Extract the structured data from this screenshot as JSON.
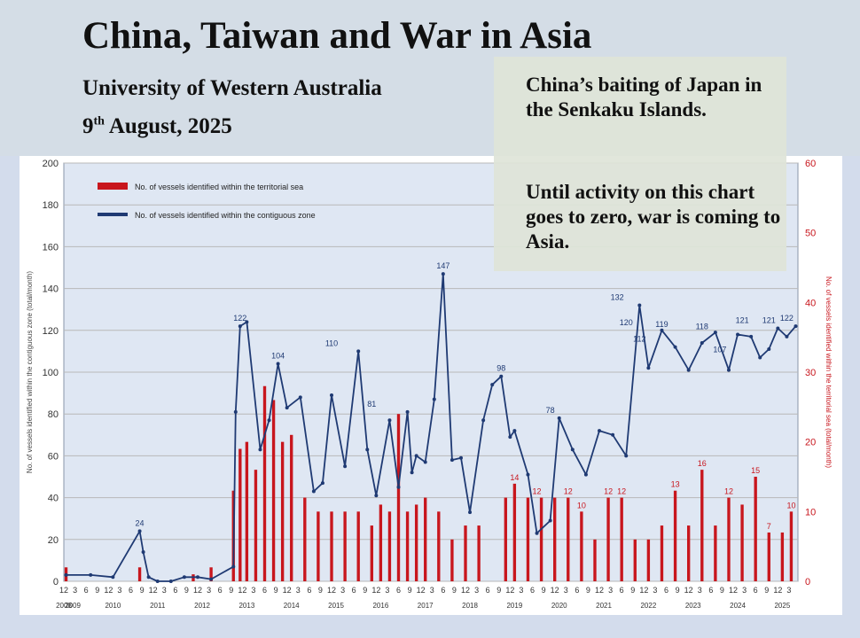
{
  "slide": {
    "title": "China, Taiwan and War in Asia",
    "subtitle": "University of Western Australia",
    "date_day": "9",
    "date_suffix": "th",
    "date_rest": "August, 2025"
  },
  "callout": {
    "line1": "China’s baiting of Japan in the Senkaku Islands.",
    "line2": "Until activity on this chart goes to zero, war is coming to Asia."
  },
  "colors": {
    "contiguous_line": "#1f3a73",
    "territorial_bars": "#c8161d",
    "gridline": "#b8b8b8",
    "plot_background": "#dfe7f3"
  },
  "chart_data": {
    "type": "line+bar",
    "title": "",
    "ylabel_left": "No. of vessels identified within the contiguous zone (total/month)",
    "ylabel_right": "No. of vessels identified within the territorial sea (total/month)",
    "ylim_left": [
      0,
      200
    ],
    "yticks_left": [
      0,
      20,
      40,
      60,
      80,
      100,
      120,
      140,
      160,
      180,
      200
    ],
    "ylim_right": [
      0,
      60
    ],
    "yticks_right": [
      0,
      10,
      20,
      30,
      40,
      50,
      60
    ],
    "xlim": [
      2008.9,
      2025.35
    ],
    "year_labels": [
      "2008",
      "2009",
      "2010",
      "2011",
      "2012",
      "2013",
      "2014",
      "2015",
      "2016",
      "2017",
      "2018",
      "2019",
      "2020",
      "2021",
      "2022",
      "2023",
      "2024",
      "2025"
    ],
    "year_positions": [
      2008.9,
      2009.1,
      2010,
      2011,
      2012,
      2013,
      2014,
      2015,
      2016,
      2017,
      2018,
      2019,
      2020,
      2021,
      2022,
      2023,
      2024,
      2025
    ],
    "month_tick_labels": [
      "12",
      "3",
      "6",
      "9"
    ],
    "legend": [
      {
        "label": "No. of vessels identified within the territorial sea",
        "series": "territorial"
      },
      {
        "label": "No. of vessels identified within the contiguous zone",
        "series": "contiguous"
      }
    ],
    "series": [
      {
        "name": "No. of vessels identified within the contiguous zone",
        "axis": "left",
        "style": "line",
        "x": [
          2008.95,
          2009.5,
          2010.0,
          2010.6,
          2010.68,
          2010.8,
          2011.0,
          2011.3,
          2011.6,
          2011.9,
          2012.2,
          2012.7,
          2012.75,
          2012.85,
          2013.0,
          2013.3,
          2013.5,
          2013.7,
          2013.9,
          2014.2,
          2014.5,
          2014.7,
          2014.9,
          2015.2,
          2015.5,
          2015.7,
          2015.9,
          2016.2,
          2016.4,
          2016.6,
          2016.7,
          2016.8,
          2017.0,
          2017.2,
          2017.4,
          2017.6,
          2017.8,
          2018.0,
          2018.3,
          2018.5,
          2018.7,
          2018.9,
          2019.0,
          2019.3,
          2019.5,
          2019.8,
          2020.0,
          2020.3,
          2020.6,
          2020.9,
          2021.2,
          2021.5,
          2021.8,
          2022.0,
          2022.3,
          2022.6,
          2022.9,
          2023.2,
          2023.5,
          2023.8,
          2024.0,
          2024.3,
          2024.5,
          2024.7,
          2024.9,
          2025.1,
          2025.3
        ],
        "y": [
          3,
          3,
          2,
          24,
          14,
          2,
          0,
          0,
          2,
          2,
          1,
          7,
          81,
          122,
          124,
          63,
          77,
          104,
          83,
          88,
          43,
          47,
          89,
          55,
          110,
          63,
          41,
          77,
          45,
          81,
          52,
          60,
          57,
          87,
          147,
          58,
          59,
          33,
          77,
          94,
          98,
          69,
          72,
          51,
          23,
          29,
          78,
          63,
          51,
          72,
          70,
          60,
          132,
          102,
          120,
          112,
          101,
          114,
          119,
          101,
          118,
          117,
          107,
          111,
          121,
          117,
          122
        ]
      },
      {
        "name": "No. of vessels identified within the territorial sea",
        "axis": "right",
        "style": "bar",
        "x": [
          2008.95,
          2009.5,
          2010.0,
          2010.6,
          2011.0,
          2011.4,
          2011.8,
          2012.2,
          2012.6,
          2012.7,
          2012.85,
          2013.0,
          2013.2,
          2013.4,
          2013.6,
          2013.8,
          2014.0,
          2014.3,
          2014.6,
          2014.9,
          2015.2,
          2015.5,
          2015.8,
          2016.0,
          2016.2,
          2016.4,
          2016.6,
          2016.8,
          2017.0,
          2017.3,
          2017.6,
          2017.9,
          2018.2,
          2018.5,
          2018.8,
          2019.0,
          2019.3,
          2019.6,
          2019.9,
          2020.2,
          2020.5,
          2020.8,
          2021.1,
          2021.4,
          2021.7,
          2022.0,
          2022.3,
          2022.6,
          2022.9,
          2023.2,
          2023.5,
          2023.8,
          2024.1,
          2024.4,
          2024.7,
          2025.0,
          2025.2
        ],
        "y": [
          2,
          0,
          0,
          2,
          0,
          0,
          1,
          2,
          0,
          13,
          19,
          20,
          16,
          28,
          26,
          20,
          21,
          12,
          10,
          10,
          10,
          10,
          8,
          11,
          10,
          24,
          10,
          11,
          12,
          10,
          6,
          8,
          8,
          0,
          12,
          14,
          12,
          12,
          12,
          12,
          10,
          6,
          12,
          12,
          6,
          6,
          8,
          13,
          8,
          16,
          8,
          12,
          11,
          15,
          7,
          7,
          10
        ]
      }
    ],
    "annotations": {
      "left_labels": [
        {
          "x": 2010.6,
          "y": 24,
          "text": "24"
        },
        {
          "x": 2012.85,
          "y": 122,
          "text": "122"
        },
        {
          "x": 2013.7,
          "y": 104,
          "text": "104"
        },
        {
          "x": 2014.9,
          "y": 110,
          "text": "110"
        },
        {
          "x": 2015.8,
          "y": 81,
          "text": "81"
        },
        {
          "x": 2017.4,
          "y": 147,
          "text": "147"
        },
        {
          "x": 2018.7,
          "y": 98,
          "text": "98"
        },
        {
          "x": 2019.8,
          "y": 78,
          "text": "78"
        },
        {
          "x": 2021.3,
          "y": 132,
          "text": "132"
        },
        {
          "x": 2021.5,
          "y": 120,
          "text": "120"
        },
        {
          "x": 2021.8,
          "y": 112,
          "text": "112"
        },
        {
          "x": 2022.3,
          "y": 119,
          "text": "119"
        },
        {
          "x": 2023.2,
          "y": 118,
          "text": "118"
        },
        {
          "x": 2023.6,
          "y": 107,
          "text": "107"
        },
        {
          "x": 2024.1,
          "y": 121,
          "text": "121"
        },
        {
          "x": 2024.7,
          "y": 121,
          "text": "121"
        },
        {
          "x": 2025.1,
          "y": 122,
          "text": "122"
        }
      ],
      "right_labels": [
        {
          "x": 2019.0,
          "y": 14,
          "text": "14"
        },
        {
          "x": 2019.5,
          "y": 12,
          "text": "12"
        },
        {
          "x": 2020.2,
          "y": 12,
          "text": "12"
        },
        {
          "x": 2020.5,
          "y": 10,
          "text": "10"
        },
        {
          "x": 2021.1,
          "y": 12,
          "text": "12"
        },
        {
          "x": 2021.4,
          "y": 12,
          "text": "12"
        },
        {
          "x": 2022.6,
          "y": 13,
          "text": "13"
        },
        {
          "x": 2023.2,
          "y": 16,
          "text": "16"
        },
        {
          "x": 2023.8,
          "y": 12,
          "text": "12"
        },
        {
          "x": 2024.4,
          "y": 15,
          "text": "15"
        },
        {
          "x": 2024.7,
          "y": 7,
          "text": "7"
        },
        {
          "x": 2025.2,
          "y": 10,
          "text": "10"
        }
      ]
    }
  }
}
